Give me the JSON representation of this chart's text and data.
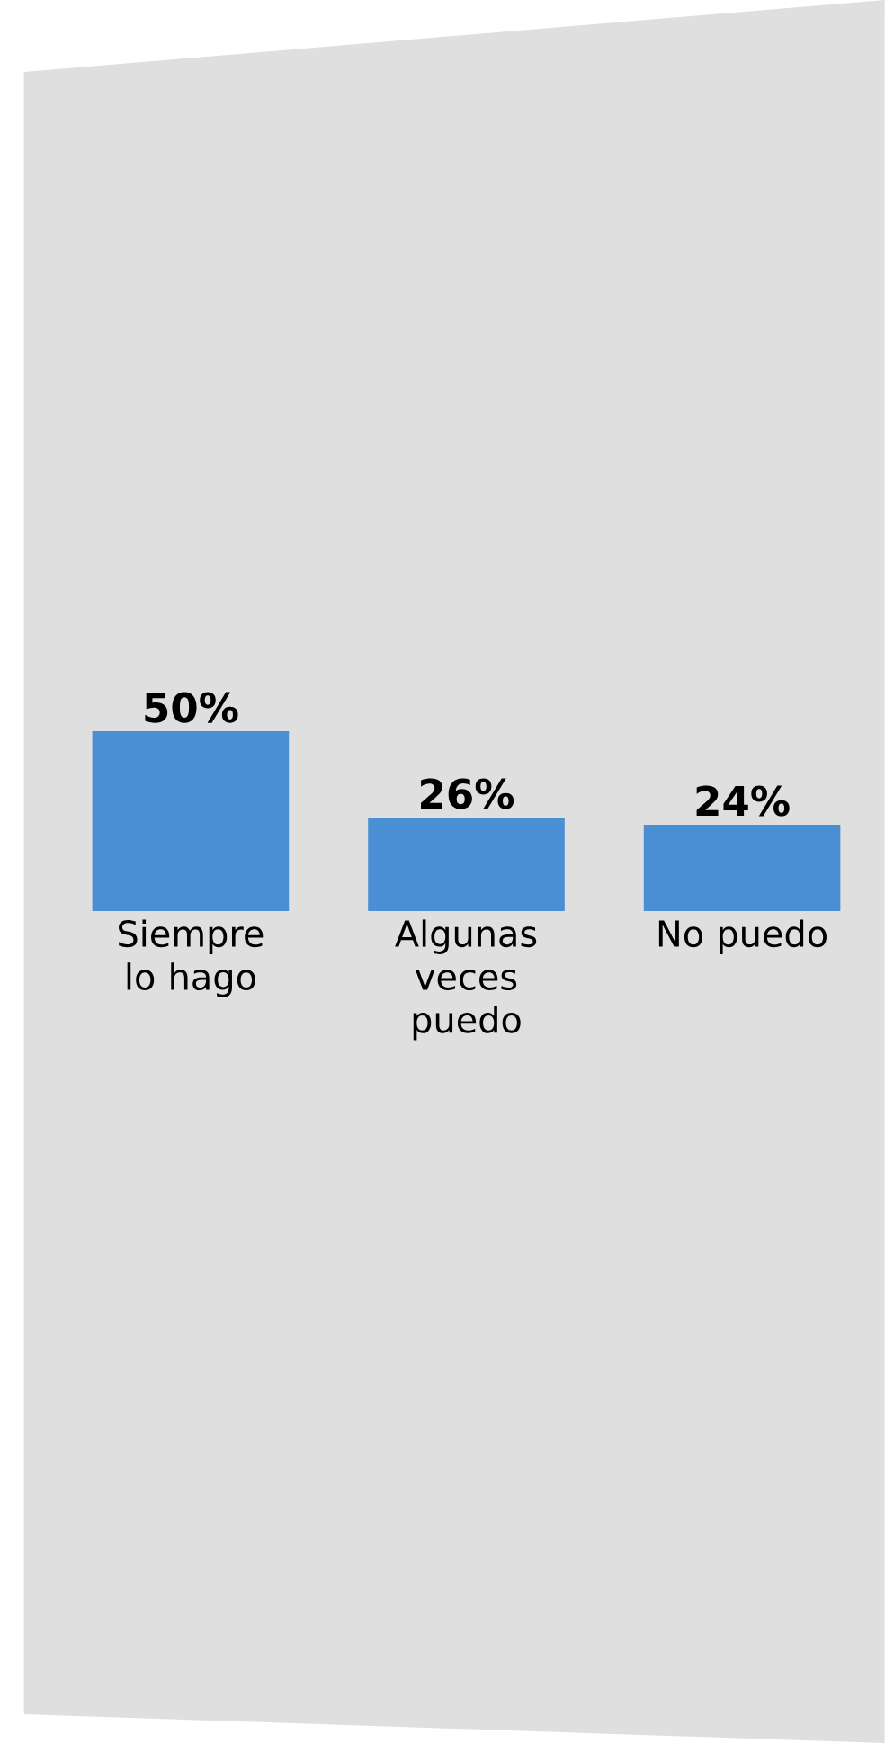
{
  "chart_data": {
    "type": "bar",
    "categories": [
      "Siempre lo hago",
      "Algunas veces puedo",
      "No puedo"
    ],
    "values": [
      50,
      26,
      24
    ],
    "value_labels": [
      "50%",
      "26%",
      "24%"
    ],
    "color": "#4a8fd4"
  }
}
